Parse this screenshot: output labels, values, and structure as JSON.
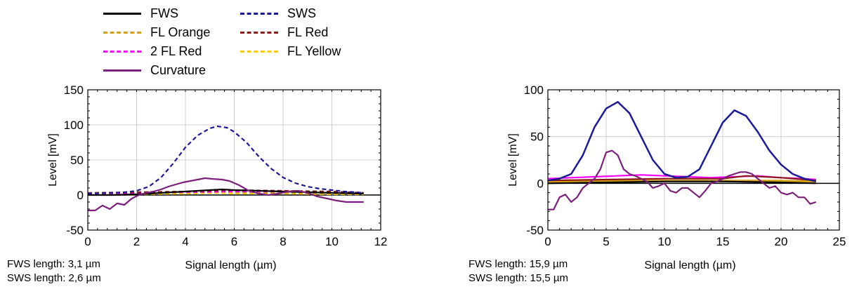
{
  "legend": {
    "items": [
      {
        "label": "FWS",
        "color": "#000000",
        "dashed": false
      },
      {
        "label": "SWS",
        "color": "#1a1a99",
        "dashed": true
      },
      {
        "label": "FL Orange",
        "color": "#d4a017",
        "dashed": true
      },
      {
        "label": "FL Red",
        "color": "#8b1a1a",
        "dashed": true
      },
      {
        "label": "2 FL Red",
        "color": "#ff00ff",
        "dashed": true
      },
      {
        "label": "FL Yellow",
        "color": "#ffcc00",
        "dashed": true
      },
      {
        "label": "Curvature",
        "color": "#7b1f7b",
        "dashed": false
      }
    ]
  },
  "chart_data": [
    {
      "type": "line",
      "xlabel": "Signal length (µm)",
      "ylabel": "Level [mV]",
      "xlim": [
        0,
        12
      ],
      "ylim": [
        -50,
        150
      ],
      "xticks": [
        "0",
        "2",
        "4",
        "6",
        "8",
        "10",
        "12"
      ],
      "yticks": [
        "-50",
        "0",
        "50",
        "100",
        "150"
      ],
      "grid": true,
      "info": [
        "FWS length: 3,1 µm",
        "SWS length: 2,6 µm"
      ],
      "series": [
        {
          "name": "SWS",
          "x": [
            0,
            1,
            1.5,
            2,
            2.5,
            3,
            3.5,
            4,
            4.5,
            5,
            5.3,
            5.7,
            6,
            6.5,
            7,
            7.5,
            8,
            8.5,
            9,
            9.5,
            10,
            10.5,
            11,
            11.3
          ],
          "y": [
            2,
            3,
            4,
            6,
            12,
            25,
            45,
            68,
            85,
            95,
            98,
            96,
            90,
            75,
            55,
            38,
            25,
            17,
            12,
            9,
            7,
            5,
            4,
            3
          ]
        },
        {
          "name": "Curvature",
          "x": [
            0,
            0.3,
            0.6,
            0.9,
            1.2,
            1.5,
            1.8,
            2.1,
            2.4,
            2.7,
            3,
            3.3,
            3.6,
            3.9,
            4.2,
            4.5,
            4.8,
            5.1,
            5.5,
            5.8,
            6.2,
            6.6,
            7,
            7.4,
            7.8,
            8.2,
            8.6,
            9,
            9.4,
            9.8,
            10.2,
            10.6,
            11,
            11.3
          ],
          "y": [
            -22,
            -22,
            -15,
            -20,
            -12,
            -14,
            -5,
            0,
            3,
            5,
            8,
            12,
            15,
            18,
            20,
            22,
            24,
            23,
            22,
            20,
            14,
            6,
            2,
            0,
            2,
            5,
            6,
            3,
            -2,
            -5,
            -8,
            -10,
            -10,
            -10
          ]
        },
        {
          "name": "FWS",
          "x": [
            0,
            1,
            2,
            3,
            4,
            5,
            5.5,
            6,
            7,
            8,
            9,
            10,
            11.3
          ],
          "y": [
            0,
            0,
            1,
            3,
            5,
            7,
            8,
            7,
            6,
            5,
            4,
            3,
            2
          ]
        },
        {
          "name": "FL Red",
          "x": [
            0,
            2,
            4,
            6,
            8,
            10,
            11.3
          ],
          "y": [
            3,
            4,
            5,
            7,
            6,
            5,
            3
          ]
        },
        {
          "name": "FL Orange",
          "x": [
            0,
            2,
            4,
            5.3,
            6,
            8,
            10,
            11.3
          ],
          "y": [
            1,
            2,
            4,
            6,
            4,
            3,
            2,
            2
          ]
        },
        {
          "name": "FL Yellow",
          "x": [
            0,
            2,
            4,
            5.3,
            6,
            8,
            10,
            11.3
          ],
          "y": [
            0,
            1,
            2,
            3,
            2,
            2,
            1,
            1
          ]
        },
        {
          "name": "2 FL Red",
          "x": [
            0,
            2,
            4,
            6,
            8,
            10,
            11.3
          ],
          "y": [
            2,
            3,
            4,
            5,
            5,
            4,
            3
          ]
        }
      ]
    },
    {
      "type": "line",
      "xlabel": "Signal length (µm)",
      "ylabel": "Level [mV]",
      "xlim": [
        0,
        25
      ],
      "ylim": [
        -50,
        100
      ],
      "xticks": [
        "0",
        "5",
        "10",
        "15",
        "20",
        "25"
      ],
      "yticks": [
        "-50",
        "0",
        "50",
        "100"
      ],
      "grid": true,
      "info": [
        "FWS length: 15,9 µm",
        "SWS length: 15,5 µm"
      ],
      "series": [
        {
          "name": "SWS",
          "x": [
            0,
            1,
            2,
            3,
            4,
            5,
            6,
            7,
            8,
            9,
            10,
            11,
            12,
            13,
            14,
            15,
            16,
            17,
            18,
            19,
            20,
            21,
            22,
            23
          ],
          "y": [
            3,
            5,
            10,
            30,
            60,
            80,
            87,
            75,
            50,
            25,
            10,
            6,
            7,
            15,
            40,
            65,
            78,
            72,
            55,
            35,
            20,
            10,
            5,
            2
          ]
        },
        {
          "name": "Curvature",
          "x": [
            0,
            0.5,
            1,
            1.5,
            2,
            2.5,
            3,
            3.5,
            4,
            4.5,
            5,
            5.5,
            6,
            6.5,
            7,
            7.5,
            8,
            8.5,
            9,
            9.5,
            10,
            10.5,
            11,
            11.5,
            12,
            12.5,
            13,
            13.5,
            14,
            14.5,
            15,
            15.5,
            16,
            16.5,
            17,
            17.5,
            18,
            18.5,
            19,
            19.5,
            20,
            20.5,
            21,
            21.5,
            22,
            22.5,
            23
          ],
          "y": [
            -28,
            -28,
            -15,
            -12,
            -20,
            -15,
            -5,
            0,
            5,
            15,
            33,
            35,
            30,
            15,
            10,
            8,
            5,
            2,
            -5,
            -3,
            0,
            -8,
            -10,
            -5,
            -5,
            -10,
            -15,
            -8,
            0,
            2,
            5,
            8,
            10,
            12,
            12,
            10,
            5,
            0,
            -5,
            -3,
            -10,
            -12,
            -10,
            -15,
            -15,
            -22,
            -20
          ]
        },
        {
          "name": "FWS",
          "x": [
            0,
            5,
            10,
            15,
            20,
            23
          ],
          "y": [
            0,
            1,
            2,
            2,
            1,
            0
          ]
        },
        {
          "name": "2 FL Red",
          "x": [
            0,
            2,
            4,
            6,
            8,
            10,
            12,
            14,
            16,
            18,
            20,
            22,
            23
          ],
          "y": [
            5,
            6,
            7,
            8,
            9,
            8,
            7,
            6,
            7,
            8,
            6,
            5,
            4
          ]
        },
        {
          "name": "FL Red",
          "x": [
            0,
            5,
            10,
            15,
            17,
            20,
            23
          ],
          "y": [
            3,
            4,
            5,
            5,
            8,
            6,
            3
          ]
        },
        {
          "name": "FL Orange",
          "x": [
            0,
            5,
            10,
            15,
            20,
            23
          ],
          "y": [
            2,
            3,
            3,
            3,
            3,
            2
          ]
        },
        {
          "name": "FL Yellow",
          "x": [
            0,
            5,
            10,
            15,
            20,
            23
          ],
          "y": [
            1,
            2,
            2,
            2,
            2,
            1
          ]
        }
      ]
    }
  ]
}
